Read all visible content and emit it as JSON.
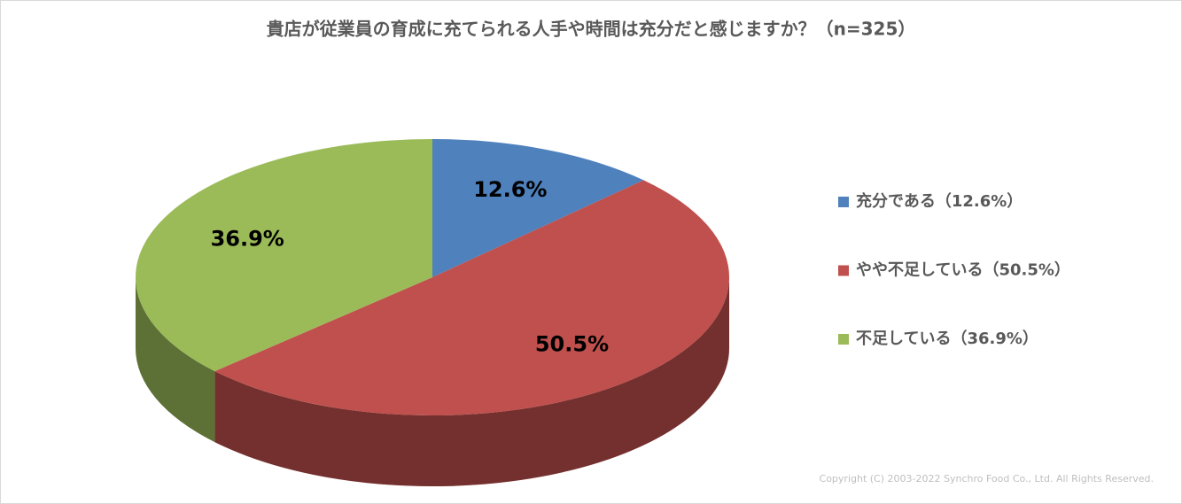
{
  "chart_data": {
    "type": "pie",
    "title": "貴店が従業員の育成に充てられる人手や時間は充分だと感じますか？（n=325）",
    "categories": [
      "充分である（12.6%）",
      "やや不足している（50.5%）",
      "不足している（36.9%）"
    ],
    "values": [
      12.6,
      50.5,
      36.9
    ],
    "value_labels": [
      "12.6%",
      "50.5%",
      "36.9%"
    ],
    "colors": [
      "#4f81bd",
      "#c0504d",
      "#9bbb59"
    ],
    "legend": "right",
    "footnote": "Copyright (C) 2003-2022   Synchro Food Co., Ltd. All Rights Reserved."
  }
}
